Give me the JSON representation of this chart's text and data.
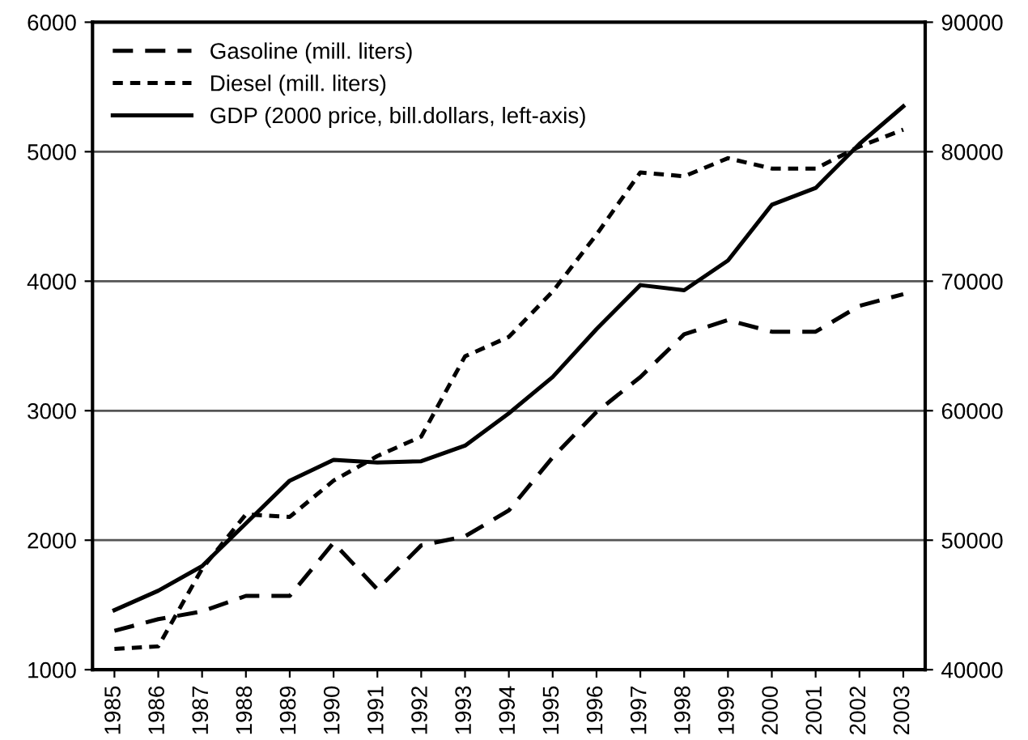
{
  "chart_data": {
    "type": "line",
    "categories": [
      "1985",
      "1986",
      "1987",
      "1988",
      "1989",
      "1990",
      "1991",
      "1992",
      "1993",
      "1994",
      "1995",
      "1996",
      "1997",
      "1998",
      "1999",
      "2000",
      "2001",
      "2002",
      "2003"
    ],
    "series": [
      {
        "name": "Gasoline (mill. liters)",
        "color": "#000000",
        "line_style": "dashed",
        "axis": "y2",
        "values": [
          43000,
          43900,
          44500,
          45700,
          45700,
          49800,
          46200,
          49600,
          50300,
          52300,
          56400,
          59900,
          62600,
          65900,
          67000,
          66100,
          66100,
          68100,
          69000
        ]
      },
      {
        "name": "Diesel (mill. liters)",
        "color": "#000000",
        "line_style": "dotted",
        "axis": "y2",
        "values": [
          41600,
          41800,
          47800,
          52000,
          51800,
          54600,
          56500,
          58000,
          64200,
          65700,
          69200,
          73600,
          78400,
          78100,
          79500,
          78700,
          78700,
          80400,
          81700
        ]
      },
      {
        "name": "GDP (2000 price, bill.dollars, left-axis)",
        "color": "#000000",
        "line_style": "solid",
        "values": [
          1460,
          1610,
          1800,
          2130,
          2460,
          2620,
          2600,
          2610,
          2730,
          2980,
          3260,
          3630,
          3970,
          3930,
          4160,
          4590,
          4720,
          5060,
          5350
        ]
      }
    ],
    "ylim": [
      1000,
      6000
    ],
    "yticks": [
      1000,
      2000,
      3000,
      4000,
      5000,
      6000
    ],
    "y2lim": [
      40000,
      90000
    ],
    "y2ticks": [
      40000,
      50000,
      60000,
      70000,
      80000,
      90000
    ],
    "grid": "y",
    "legend": "top left",
    "marker": "none"
  }
}
